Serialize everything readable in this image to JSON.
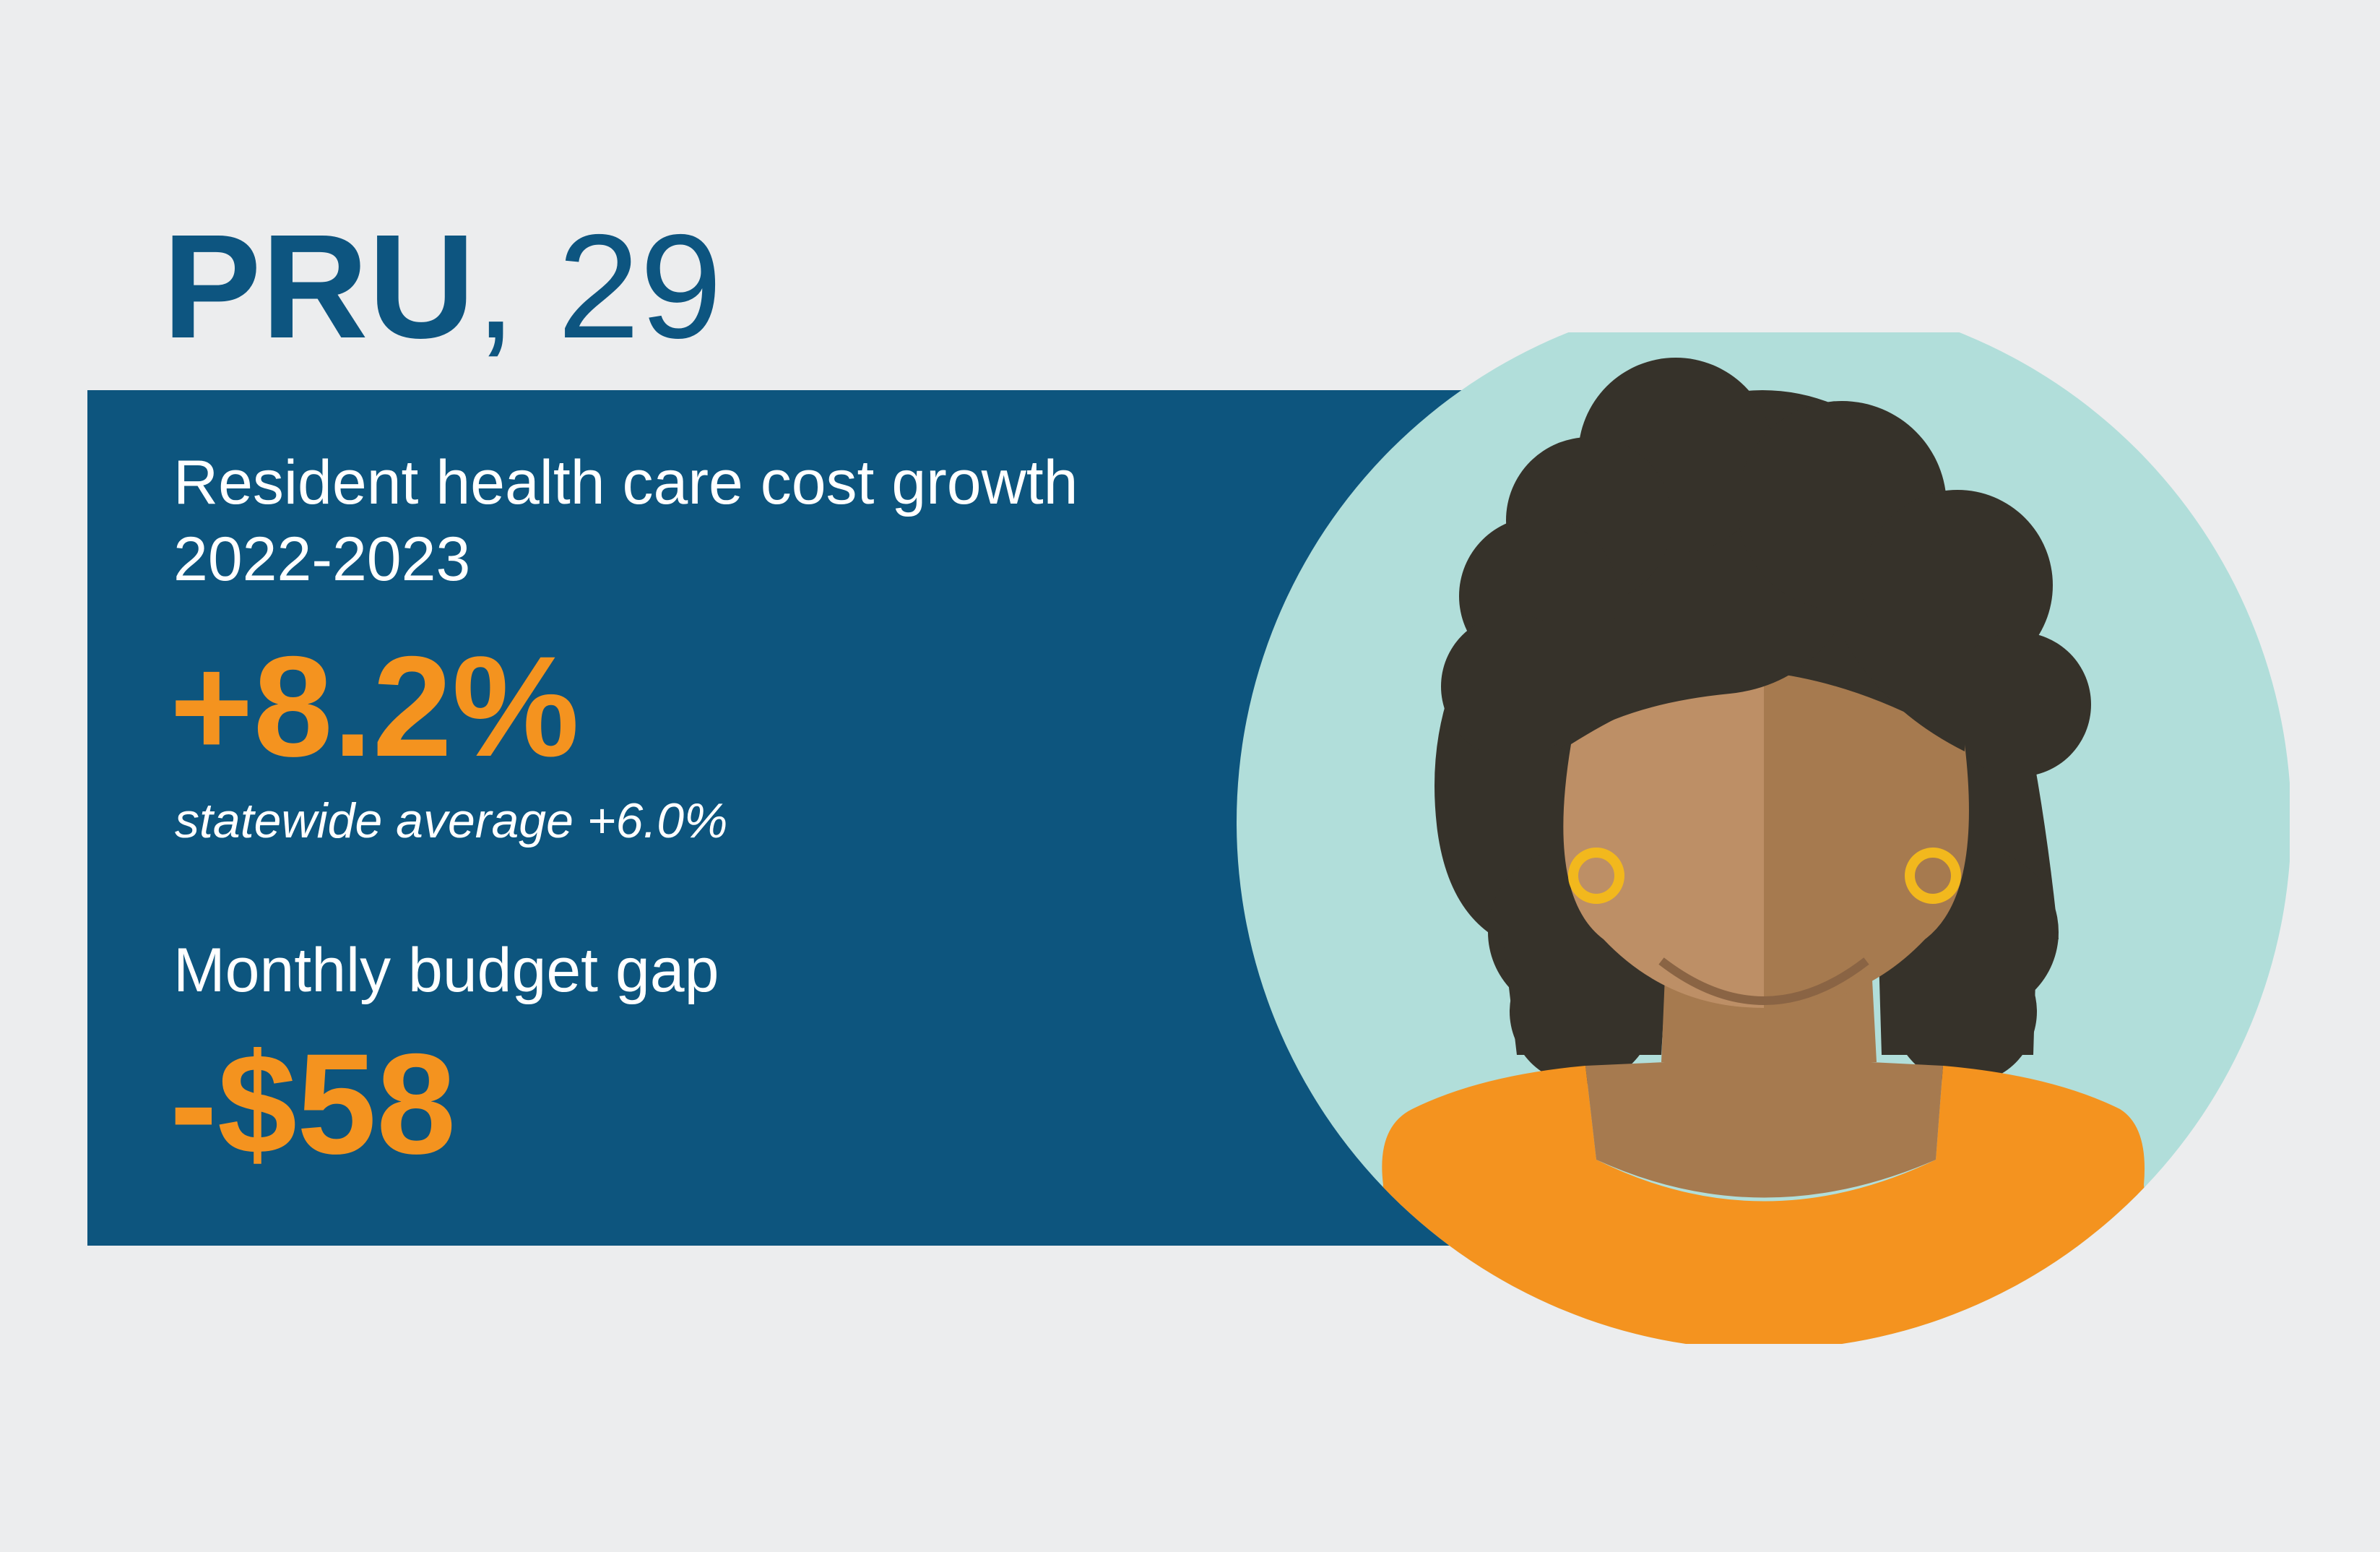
{
  "profile": {
    "name": "PRU",
    "separator": ",",
    "age": "29"
  },
  "metrics": {
    "cost_growth_label_line1": "Resident health care cost growth",
    "cost_growth_label_line2": "2022-2023",
    "cost_growth_value": "+8.2%",
    "statewide_note": "statewide average +6.0%",
    "budget_gap_label": "Monthly budget gap",
    "budget_gap_value": "-$58"
  },
  "colors": {
    "background": "#ecedee",
    "panel": "#0d557e",
    "title": "#0d5580",
    "accent": "#f4931f",
    "avatar_circle": "#b1deda",
    "hair": "#36322a",
    "skin_light": "#bd8f66",
    "skin_dark": "#a67a4f",
    "earring": "#f2b81d"
  },
  "icons": {
    "avatar": "woman-portrait-icon"
  }
}
